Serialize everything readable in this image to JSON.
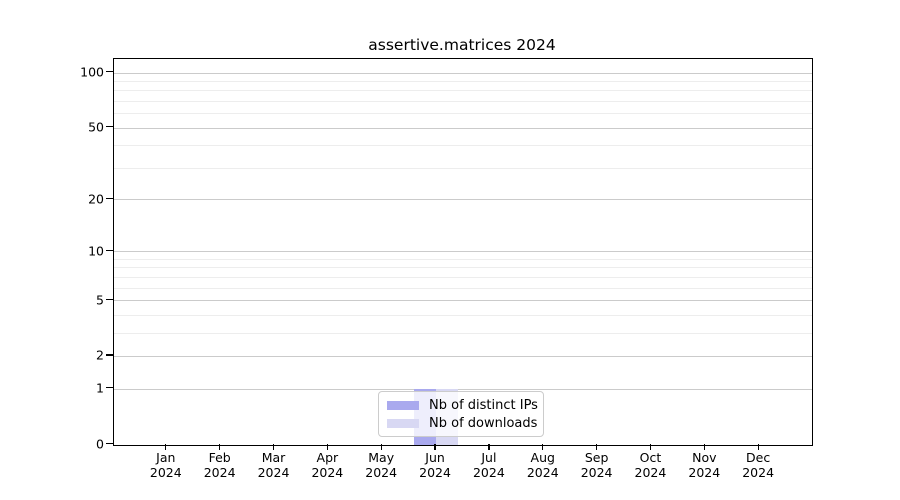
{
  "title": "assertive.matrices 2024",
  "chart_data": {
    "type": "bar",
    "title": "assertive.matrices 2024",
    "categories": [
      "Jan 2024",
      "Feb 2024",
      "Mar 2024",
      "Apr 2024",
      "May 2024",
      "Jun 2024",
      "Jul 2024",
      "Aug 2024",
      "Sep 2024",
      "Oct 2024",
      "Nov 2024",
      "Dec 2024"
    ],
    "x_tick_month_labels": [
      "Jan",
      "Feb",
      "Mar",
      "Apr",
      "May",
      "Jun",
      "Jul",
      "Aug",
      "Sep",
      "Oct",
      "Nov",
      "Dec"
    ],
    "x_tick_year_label": "2024",
    "series": [
      {
        "name": "Nb of distinct IPs",
        "color": "#a9a9ee",
        "values": [
          0,
          0,
          0,
          0,
          0,
          1,
          0,
          0,
          0,
          0,
          0,
          0
        ]
      },
      {
        "name": "Nb of downloads",
        "color": "#d8d8f3",
        "values": [
          0,
          0,
          0,
          0,
          0,
          1,
          0,
          0,
          0,
          0,
          0,
          0
        ]
      }
    ],
    "xlabel": "",
    "ylabel": "",
    "y_axis": {
      "scale": "log1p",
      "tick_labels": [
        "0",
        "1",
        "2",
        "5",
        "10",
        "20",
        "50",
        "100"
      ],
      "ticks": [
        0,
        1,
        2,
        5,
        10,
        20,
        50,
        100
      ],
      "minor_ticks": [
        3,
        4,
        6,
        7,
        8,
        9,
        30,
        40,
        60,
        70,
        80,
        90
      ],
      "ylim": [
        0,
        115
      ]
    },
    "legend": {
      "position": "lower-center-inside",
      "entries": [
        "Nb of distinct IPs",
        "Nb of downloads"
      ]
    },
    "grid": "horizontal, major and minor",
    "colors": {
      "distinct_ips_bar": "#a9a9ee",
      "downloads_bar": "#d8d8f3",
      "grid_major": "#cbcbcb",
      "grid_minor": "#ededed",
      "axis_frame": "#000000",
      "background": "#ffffff",
      "text": "#000000",
      "legend_border": "#cccccc"
    }
  }
}
